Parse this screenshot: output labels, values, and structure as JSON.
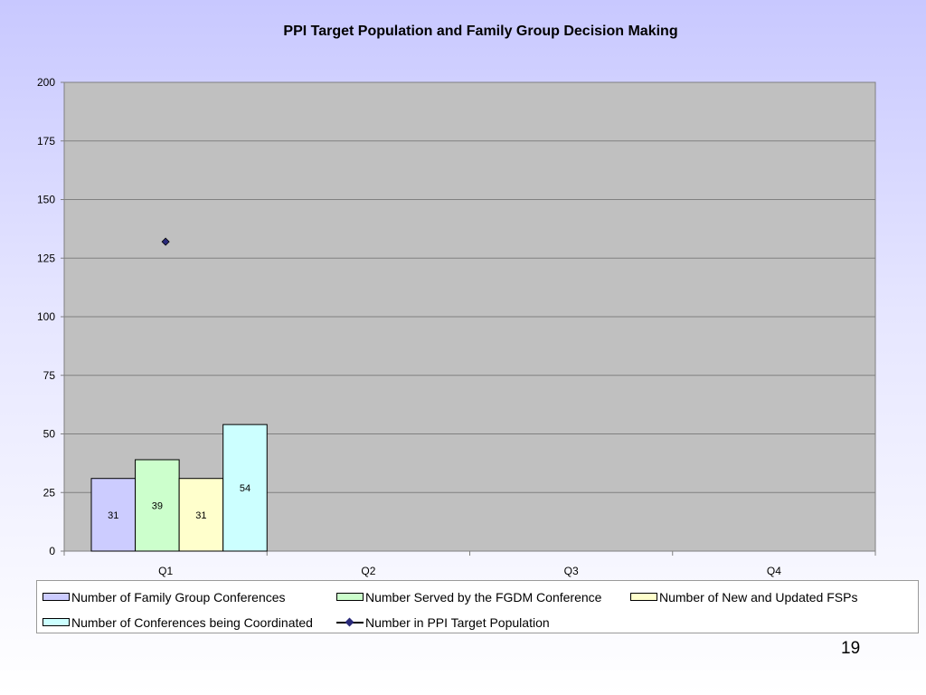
{
  "slide": {
    "number": "19"
  },
  "chart_data": {
    "type": "bar",
    "title": "PPI Target Population and Family Group Decision Making",
    "xlabel": "",
    "ylabel": "",
    "categories": [
      "Q1",
      "Q2",
      "Q3",
      "Q4"
    ],
    "ylim": [
      0,
      200
    ],
    "yticks": [
      0,
      25,
      50,
      75,
      100,
      125,
      150,
      175,
      200
    ],
    "grid": true,
    "legend_position": "bottom",
    "plot_background": "#c0c0c0",
    "series": [
      {
        "name": "Number of Family Group Conferences",
        "kind": "bar",
        "color": "#ccccff",
        "values": [
          31,
          null,
          null,
          null
        ],
        "labels": [
          "31",
          "",
          "",
          ""
        ]
      },
      {
        "name": "Number Served by the FGDM Conference",
        "kind": "bar",
        "color": "#ccffcc",
        "values": [
          39,
          null,
          null,
          null
        ],
        "labels": [
          "39",
          "",
          "",
          ""
        ]
      },
      {
        "name": "Number of New and Updated FSPs",
        "kind": "bar",
        "color": "#ffffcc",
        "values": [
          31,
          null,
          null,
          null
        ],
        "labels": [
          "31",
          "",
          "",
          ""
        ]
      },
      {
        "name": "Number of Conferences being Coordinated",
        "kind": "bar",
        "color": "#ccffff",
        "values": [
          54,
          null,
          null,
          null
        ],
        "labels": [
          "54",
          "",
          "",
          ""
        ]
      },
      {
        "name": "Number in PPI Target Population",
        "kind": "line",
        "color": "#2a2a7a",
        "values": [
          132,
          null,
          null,
          null
        ]
      }
    ]
  }
}
